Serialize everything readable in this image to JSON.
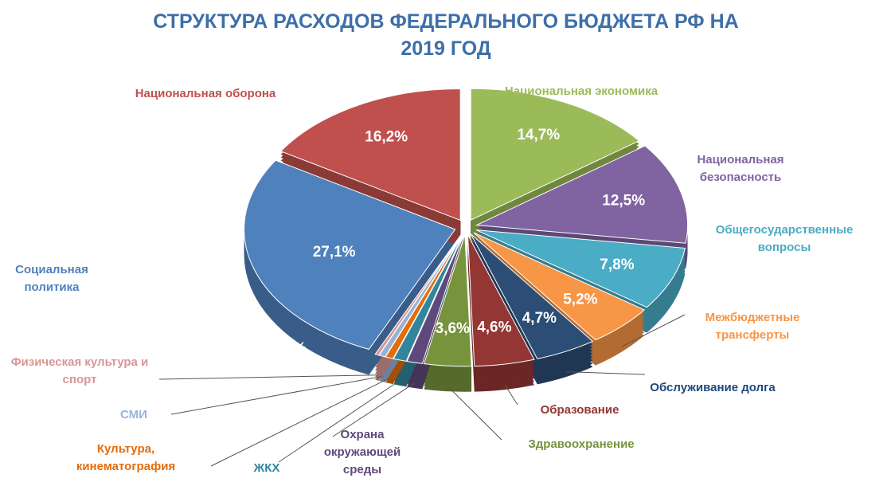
{
  "chart_data": {
    "type": "pie",
    "title": "СТРУКТУРА РАСХОДОВ ФЕДЕРАЛЬНОГО БЮДЖЕТА РФ НА 2019 ГОД",
    "categories": [
      "Национальная экономика",
      "Национальная безопасность",
      "Общегосударственные вопросы",
      "Межбюджетные трансферты",
      "Обслуживание долга",
      "Образование",
      "Здравоохранение",
      "Охрана окружающей среды",
      "ЖКХ",
      "Культура, кинематография",
      "СМИ",
      "Физическая культура и спорт",
      "Социальная политика",
      "Национальная оборона"
    ],
    "values": [
      14.7,
      12.5,
      7.8,
      5.2,
      4.7,
      4.6,
      3.6,
      1.2,
      1.0,
      0.6,
      0.5,
      0.3,
      27.1,
      16.2
    ],
    "value_labels": [
      "14,7%",
      "12,5%",
      "7,8%",
      "5,2%",
      "4,7%",
      "4,6%",
      "3,6%",
      null,
      null,
      null,
      null,
      null,
      "27,1%",
      "16,2%"
    ],
    "colors": [
      "#9bbb59",
      "#8064a2",
      "#4bacc6",
      "#f79646",
      "#2c4d75",
      "#943634",
      "#77933c",
      "#5f497a",
      "#31859c",
      "#e46c0a",
      "#95b3d7",
      "#d99694",
      "#4f81bd",
      "#c0504d"
    ],
    "annotations": [
      {
        "text": "3,6%"
      }
    ]
  }
}
